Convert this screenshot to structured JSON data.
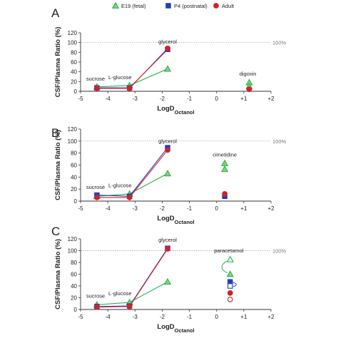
{
  "legend": [
    {
      "name": "E19 (fetal)",
      "marker": "triangle",
      "color": "#2db34a",
      "fill": "#8bd07a"
    },
    {
      "name": "P4 (postnatal)",
      "marker": "square",
      "color": "#1f3fbf",
      "fill": "#1f3fbf"
    },
    {
      "name": "Adult",
      "marker": "circle",
      "color": "#d4202a",
      "fill": "#d4202a"
    }
  ],
  "chart_data": [
    {
      "panel": "A",
      "type": "scatter",
      "xlabel": "LogD",
      "xlabel_sub": "Octanol",
      "ylabel": "CSF/Plasma Ratio (%)",
      "xlim": [
        -5,
        2
      ],
      "ylim": [
        0,
        120
      ],
      "xticks": [
        "-5",
        "-4",
        "-3",
        "-2",
        "-1",
        "0",
        "+1",
        "+2"
      ],
      "yticks": [
        "0",
        "20",
        "40",
        "60",
        "80",
        "100",
        "120"
      ],
      "reference_line": {
        "y": 100,
        "label": "100%"
      },
      "series": [
        {
          "name": "E19 (fetal)",
          "connected": true,
          "points": [
            {
              "x": -4.4,
              "y": 9
            },
            {
              "x": -3.2,
              "y": 12
            },
            {
              "x": -1.8,
              "y": 46
            }
          ]
        },
        {
          "name": "P4 (postnatal)",
          "connected": true,
          "points": [
            {
              "x": -4.4,
              "y": 7
            },
            {
              "x": -3.2,
              "y": 7
            },
            {
              "x": -1.8,
              "y": 86
            }
          ]
        },
        {
          "name": "Adult",
          "connected": true,
          "points": [
            {
              "x": -4.4,
              "y": 6
            },
            {
              "x": -3.2,
              "y": 6
            },
            {
              "x": -1.8,
              "y": 88
            }
          ]
        },
        {
          "name": "E19 (fetal)",
          "connected": false,
          "points": [
            {
              "x": 1.2,
              "y": 18
            },
            {
              "x": 1.2,
              "y": 10
            }
          ]
        },
        {
          "name": "Adult",
          "connected": false,
          "points": [
            {
              "x": 1.2,
              "y": 4
            }
          ]
        }
      ],
      "annotations": [
        {
          "text": "sucrose",
          "x": -4.45,
          "y": 22
        },
        {
          "text": "L-glucose",
          "x": -3.55,
          "y": 25
        },
        {
          "text": "glycerol",
          "x": -1.8,
          "y": 98
        },
        {
          "text": "digoxin",
          "x": 1.15,
          "y": 32
        }
      ]
    },
    {
      "panel": "B",
      "type": "scatter",
      "xlabel": "LogD",
      "xlabel_sub": "Octanol",
      "ylabel": "CSF/Plasma Ratio (%)",
      "xlim": [
        -5,
        2
      ],
      "ylim": [
        0,
        120
      ],
      "xticks": [
        "-5",
        "-4",
        "-3",
        "-2",
        "-1",
        "0",
        "+1",
        "+2"
      ],
      "yticks": [
        "0",
        "20",
        "40",
        "60",
        "80",
        "100",
        "120"
      ],
      "reference_line": {
        "y": 100,
        "label": "100%"
      },
      "series": [
        {
          "name": "E19 (fetal)",
          "connected": true,
          "points": [
            {
              "x": -4.4,
              "y": 8
            },
            {
              "x": -3.2,
              "y": 12
            },
            {
              "x": -1.8,
              "y": 46
            }
          ]
        },
        {
          "name": "P4 (postnatal)",
          "connected": true,
          "points": [
            {
              "x": -4.4,
              "y": 10
            },
            {
              "x": -3.2,
              "y": 8
            },
            {
              "x": -1.8,
              "y": 89
            }
          ]
        },
        {
          "name": "Adult",
          "connected": true,
          "points": [
            {
              "x": -4.4,
              "y": 6
            },
            {
              "x": -3.2,
              "y": 6
            },
            {
              "x": -1.8,
              "y": 85
            }
          ]
        },
        {
          "name": "E19 (fetal)",
          "connected": false,
          "points": [
            {
              "x": 0.3,
              "y": 63
            },
            {
              "x": 0.3,
              "y": 53
            }
          ]
        },
        {
          "name": "P4 (postnatal)",
          "connected": false,
          "points": [
            {
              "x": 0.3,
              "y": 8
            }
          ]
        },
        {
          "name": "Adult",
          "connected": false,
          "points": [
            {
              "x": 0.3,
              "y": 12
            }
          ]
        }
      ],
      "annotations": [
        {
          "text": "sucrose",
          "x": -4.45,
          "y": 20
        },
        {
          "text": "L-glucose",
          "x": -3.55,
          "y": 23
        },
        {
          "text": "glycerol",
          "x": -1.8,
          "y": 97
        },
        {
          "text": "cimetidine",
          "x": 0.3,
          "y": 74
        }
      ]
    },
    {
      "panel": "C",
      "type": "scatter",
      "xlabel": "LogD",
      "xlabel_sub": "Octanol",
      "ylabel": "CSF/Plasma Ratio (%)",
      "xlim": [
        -5,
        2
      ],
      "ylim": [
        0,
        120
      ],
      "xticks": [
        "-5",
        "-4",
        "-3",
        "-2",
        "-1",
        "0",
        "+1",
        "+2"
      ],
      "yticks": [
        "0",
        "20",
        "40",
        "60",
        "80",
        "100",
        "120"
      ],
      "reference_line": {
        "y": 100,
        "label": "100%"
      },
      "series": [
        {
          "name": "E19 (fetal)",
          "connected": true,
          "points": [
            {
              "x": -4.4,
              "y": 8
            },
            {
              "x": -3.2,
              "y": 12
            },
            {
              "x": -1.8,
              "y": 47
            }
          ]
        },
        {
          "name": "P4 (postnatal)",
          "connected": true,
          "points": [
            {
              "x": -4.4,
              "y": 5
            },
            {
              "x": -3.2,
              "y": 6
            },
            {
              "x": -1.8,
              "y": 104
            }
          ]
        },
        {
          "name": "Adult",
          "connected": true,
          "points": [
            {
              "x": -4.4,
              "y": 4
            },
            {
              "x": -3.2,
              "y": 5
            },
            {
              "x": -1.8,
              "y": 103
            }
          ]
        },
        {
          "name": "E19 (fetal)",
          "connected": false,
          "points": [
            {
              "x": 0.5,
              "y": 85,
              "hollow": true
            },
            {
              "x": 0.5,
              "y": 60
            }
          ]
        },
        {
          "name": "P4 (postnatal)",
          "connected": false,
          "points": [
            {
              "x": 0.5,
              "y": 47
            },
            {
              "x": 0.5,
              "y": 40,
              "hollow": true
            }
          ]
        },
        {
          "name": "Adult",
          "connected": false,
          "points": [
            {
              "x": 0.5,
              "y": 28
            },
            {
              "x": 0.5,
              "y": 17,
              "hollow": true
            }
          ]
        }
      ],
      "annotations": [
        {
          "text": "sucrose",
          "x": -4.45,
          "y": 20
        },
        {
          "text": "L-glucose",
          "x": -3.55,
          "y": 24
        },
        {
          "text": "glycerol",
          "x": -1.8,
          "y": 115
        },
        {
          "text": "paracetamol",
          "x": 0.45,
          "y": 97
        }
      ]
    }
  ]
}
